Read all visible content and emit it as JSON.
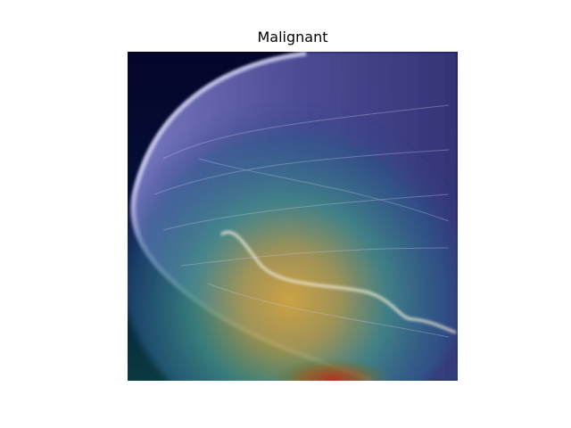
{
  "figure": {
    "title": "Malignant"
  },
  "image": {
    "description_icon": "mammogram-heatmap-overlay",
    "colors": {
      "background": "#ffffff",
      "dark_background": "#03031f",
      "tissue_overlay": "#5a5aa8",
      "heat_center": "#c8a040",
      "heat_edge": "#2a7a7a",
      "hot_spot": "#b03020"
    }
  }
}
